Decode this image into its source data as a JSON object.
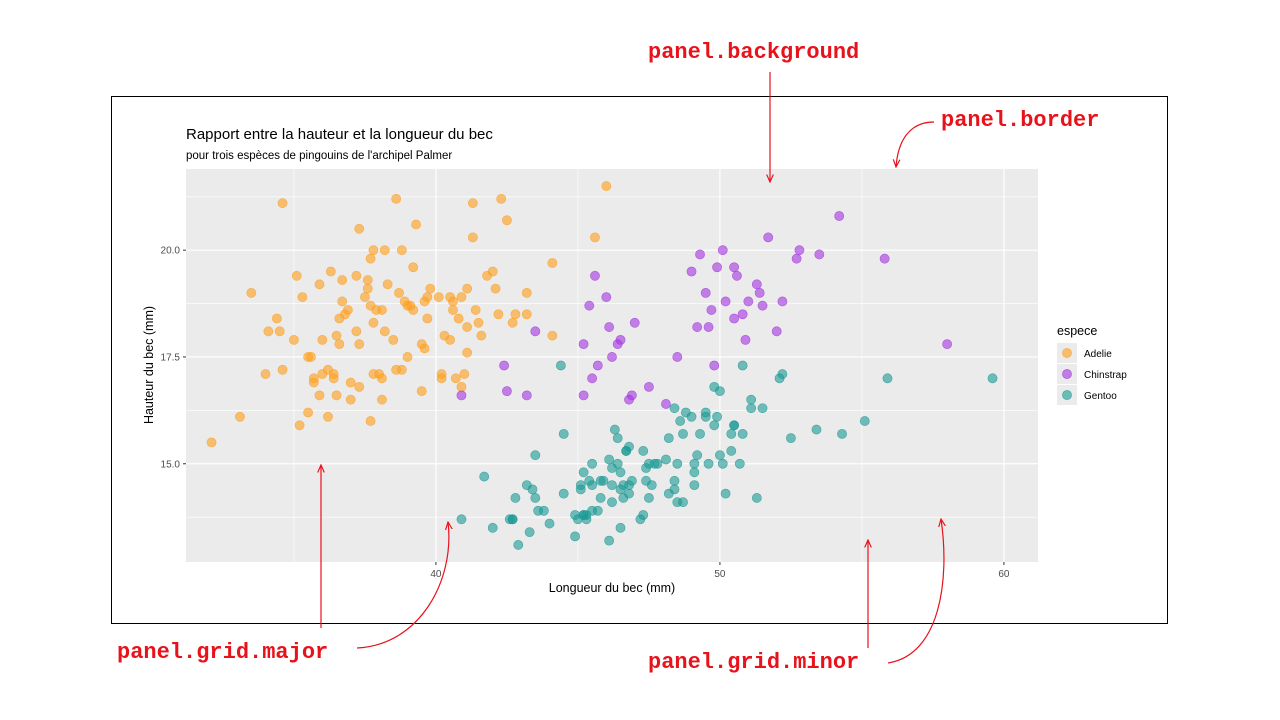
{
  "annotations": {
    "panel_background": "panel.background",
    "panel_border": "panel.border",
    "panel_grid_major": "panel.grid.major",
    "panel_grid_minor": "panel.grid.minor"
  },
  "colors": {
    "annotation": "#e8121b",
    "panel": "#ebebeb",
    "grid": "#ffffff",
    "Adelie": "#ff9f1c",
    "Chinstrap": "#a335e0",
    "Gentoo": "#1b9a95"
  },
  "chart_data": {
    "type": "scatter",
    "title": "Rapport entre la hauteur et la longueur du bec",
    "subtitle": "pour trois espèces de pingouins de l'archipel Palmer",
    "xlabel": "Longueur du bec (mm)",
    "ylabel": "Hauteur du bec (mm)",
    "xlim": [
      31.2,
      61.2
    ],
    "ylim": [
      12.7,
      21.9
    ],
    "xticks": [
      40,
      50,
      60
    ],
    "xtick_labels": [
      "40",
      "50",
      "60"
    ],
    "yticks": [
      15.0,
      17.5,
      20.0
    ],
    "ytick_labels": [
      "15.0",
      "17.5",
      "20.0"
    ],
    "grid": true,
    "legend_title": "espece",
    "legend_position": "right",
    "series": [
      {
        "name": "Adelie",
        "points": [
          [
            32.1,
            15.5
          ],
          [
            33.1,
            16.1
          ],
          [
            33.5,
            19.0
          ],
          [
            34.0,
            17.1
          ],
          [
            34.1,
            18.1
          ],
          [
            34.4,
            18.4
          ],
          [
            34.5,
            18.1
          ],
          [
            34.6,
            21.1
          ],
          [
            34.6,
            17.2
          ],
          [
            35.0,
            17.9
          ],
          [
            35.1,
            19.4
          ],
          [
            35.2,
            15.9
          ],
          [
            35.3,
            18.9
          ],
          [
            35.5,
            17.5
          ],
          [
            35.5,
            16.2
          ],
          [
            35.6,
            17.5
          ],
          [
            35.7,
            16.9
          ],
          [
            35.7,
            17.0
          ],
          [
            35.9,
            16.6
          ],
          [
            35.9,
            19.2
          ],
          [
            36.0,
            17.9
          ],
          [
            36.0,
            17.1
          ],
          [
            36.2,
            17.2
          ],
          [
            36.2,
            16.1
          ],
          [
            36.3,
            19.5
          ],
          [
            36.4,
            17.1
          ],
          [
            36.4,
            17.0
          ],
          [
            36.5,
            16.6
          ],
          [
            36.5,
            18.0
          ],
          [
            36.6,
            17.8
          ],
          [
            36.6,
            18.4
          ],
          [
            36.7,
            18.8
          ],
          [
            36.7,
            19.3
          ],
          [
            36.8,
            18.5
          ],
          [
            36.9,
            18.6
          ],
          [
            37.0,
            16.9
          ],
          [
            37.0,
            16.5
          ],
          [
            37.2,
            18.1
          ],
          [
            37.2,
            19.4
          ],
          [
            37.3,
            20.5
          ],
          [
            37.3,
            17.8
          ],
          [
            37.3,
            16.8
          ],
          [
            37.5,
            18.9
          ],
          [
            37.6,
            19.1
          ],
          [
            37.6,
            19.3
          ],
          [
            37.7,
            18.7
          ],
          [
            37.7,
            16.0
          ],
          [
            37.7,
            19.8
          ],
          [
            37.8,
            17.1
          ],
          [
            37.8,
            18.3
          ],
          [
            37.8,
            20.0
          ],
          [
            37.9,
            18.6
          ],
          [
            38.0,
            17.1
          ],
          [
            38.1,
            18.6
          ],
          [
            38.1,
            17.0
          ],
          [
            38.1,
            16.5
          ],
          [
            38.2,
            18.1
          ],
          [
            38.2,
            20.0
          ],
          [
            38.3,
            19.2
          ],
          [
            38.5,
            17.9
          ],
          [
            38.6,
            17.2
          ],
          [
            38.6,
            21.2
          ],
          [
            38.7,
            19.0
          ],
          [
            38.8,
            17.2
          ],
          [
            38.8,
            20.0
          ],
          [
            38.9,
            18.8
          ],
          [
            39.0,
            17.5
          ],
          [
            39.0,
            18.7
          ],
          [
            39.1,
            18.7
          ],
          [
            39.2,
            19.6
          ],
          [
            39.2,
            18.6
          ],
          [
            39.3,
            20.6
          ],
          [
            39.5,
            16.7
          ],
          [
            39.5,
            17.8
          ],
          [
            39.6,
            17.7
          ],
          [
            39.6,
            18.8
          ],
          [
            39.7,
            18.4
          ],
          [
            39.7,
            18.9
          ],
          [
            39.8,
            19.1
          ],
          [
            40.1,
            18.9
          ],
          [
            40.2,
            17.1
          ],
          [
            40.2,
            17.0
          ],
          [
            40.3,
            18.0
          ],
          [
            40.5,
            18.9
          ],
          [
            40.5,
            17.9
          ],
          [
            40.6,
            18.8
          ],
          [
            40.6,
            18.6
          ],
          [
            40.7,
            17.0
          ],
          [
            40.8,
            18.4
          ],
          [
            40.9,
            16.8
          ],
          [
            40.9,
            18.9
          ],
          [
            41.0,
            17.1
          ],
          [
            41.1,
            17.6
          ],
          [
            41.1,
            18.2
          ],
          [
            41.1,
            19.1
          ],
          [
            41.3,
            21.1
          ],
          [
            41.3,
            20.3
          ],
          [
            41.4,
            18.6
          ],
          [
            41.5,
            18.3
          ],
          [
            41.6,
            18.0
          ],
          [
            41.8,
            19.4
          ],
          [
            42.0,
            19.5
          ],
          [
            42.1,
            19.1
          ],
          [
            42.2,
            18.5
          ],
          [
            42.3,
            21.2
          ],
          [
            42.5,
            20.7
          ],
          [
            42.7,
            18.3
          ],
          [
            42.8,
            18.5
          ],
          [
            43.2,
            18.5
          ],
          [
            43.2,
            19.0
          ],
          [
            44.1,
            19.7
          ],
          [
            44.1,
            18.0
          ],
          [
            45.6,
            20.3
          ],
          [
            46.0,
            21.5
          ]
        ]
      },
      {
        "name": "Chinstrap",
        "points": [
          [
            40.9,
            16.6
          ],
          [
            42.4,
            17.3
          ],
          [
            42.5,
            16.7
          ],
          [
            43.2,
            16.6
          ],
          [
            43.5,
            18.1
          ],
          [
            45.2,
            16.6
          ],
          [
            45.2,
            17.8
          ],
          [
            45.4,
            18.7
          ],
          [
            45.5,
            17.0
          ],
          [
            45.6,
            19.4
          ],
          [
            45.7,
            17.3
          ],
          [
            46.0,
            18.9
          ],
          [
            46.1,
            18.2
          ],
          [
            46.2,
            17.5
          ],
          [
            46.4,
            17.8
          ],
          [
            46.5,
            17.9
          ],
          [
            46.8,
            16.5
          ],
          [
            46.9,
            16.6
          ],
          [
            47.0,
            18.3
          ],
          [
            47.5,
            16.8
          ],
          [
            48.1,
            16.4
          ],
          [
            48.5,
            17.5
          ],
          [
            49.0,
            19.5
          ],
          [
            49.2,
            18.2
          ],
          [
            49.3,
            19.9
          ],
          [
            49.5,
            19.0
          ],
          [
            49.6,
            18.2
          ],
          [
            49.8,
            17.3
          ],
          [
            49.9,
            19.6
          ],
          [
            50.2,
            18.8
          ],
          [
            50.5,
            19.6
          ],
          [
            50.6,
            19.4
          ],
          [
            50.8,
            18.5
          ],
          [
            50.9,
            17.9
          ],
          [
            51.0,
            18.8
          ],
          [
            51.3,
            19.2
          ],
          [
            51.4,
            19.0
          ],
          [
            51.5,
            18.7
          ],
          [
            51.7,
            20.3
          ],
          [
            52.0,
            18.1
          ],
          [
            52.2,
            18.8
          ],
          [
            52.7,
            19.8
          ],
          [
            52.8,
            20.0
          ],
          [
            53.5,
            19.9
          ],
          [
            54.2,
            20.8
          ],
          [
            55.8,
            19.8
          ],
          [
            58.0,
            17.8
          ],
          [
            50.1,
            20.0
          ],
          [
            50.5,
            18.4
          ],
          [
            49.7,
            18.6
          ]
        ]
      },
      {
        "name": "Gentoo",
        "points": [
          [
            40.9,
            13.7
          ],
          [
            41.7,
            14.7
          ],
          [
            42.0,
            13.5
          ],
          [
            42.6,
            13.7
          ],
          [
            42.7,
            13.7
          ],
          [
            42.8,
            14.2
          ],
          [
            42.9,
            13.1
          ],
          [
            43.2,
            14.5
          ],
          [
            43.3,
            13.4
          ],
          [
            43.4,
            14.4
          ],
          [
            43.5,
            14.2
          ],
          [
            43.6,
            13.9
          ],
          [
            43.8,
            13.9
          ],
          [
            44.0,
            13.6
          ],
          [
            44.4,
            17.3
          ],
          [
            44.5,
            15.7
          ],
          [
            44.5,
            14.3
          ],
          [
            45.0,
            13.7
          ],
          [
            45.1,
            14.4
          ],
          [
            45.2,
            14.8
          ],
          [
            45.3,
            13.8
          ],
          [
            45.3,
            13.7
          ],
          [
            45.4,
            14.6
          ],
          [
            45.5,
            15.0
          ],
          [
            45.5,
            13.9
          ],
          [
            45.7,
            13.9
          ],
          [
            45.8,
            14.2
          ],
          [
            45.9,
            14.6
          ],
          [
            46.1,
            15.1
          ],
          [
            46.2,
            14.5
          ],
          [
            46.2,
            14.9
          ],
          [
            46.3,
            15.8
          ],
          [
            46.4,
            15.0
          ],
          [
            46.5,
            13.5
          ],
          [
            46.5,
            14.4
          ],
          [
            46.6,
            14.2
          ],
          [
            46.7,
            15.3
          ],
          [
            46.8,
            14.3
          ],
          [
            46.8,
            15.4
          ],
          [
            46.9,
            14.6
          ],
          [
            47.2,
            13.7
          ],
          [
            47.3,
            15.3
          ],
          [
            47.4,
            14.6
          ],
          [
            47.5,
            14.2
          ],
          [
            47.6,
            14.5
          ],
          [
            47.7,
            15.0
          ],
          [
            47.8,
            15.0
          ],
          [
            48.1,
            15.1
          ],
          [
            48.2,
            14.3
          ],
          [
            48.4,
            14.4
          ],
          [
            48.5,
            14.1
          ],
          [
            48.6,
            16.0
          ],
          [
            48.7,
            14.1
          ],
          [
            48.7,
            15.7
          ],
          [
            48.8,
            16.2
          ],
          [
            49.0,
            16.1
          ],
          [
            49.1,
            14.5
          ],
          [
            49.1,
            15.0
          ],
          [
            49.3,
            15.7
          ],
          [
            49.5,
            16.2
          ],
          [
            49.5,
            16.1
          ],
          [
            49.6,
            15.0
          ],
          [
            49.8,
            15.9
          ],
          [
            49.9,
            16.1
          ],
          [
            50.0,
            15.2
          ],
          [
            50.1,
            15.0
          ],
          [
            50.2,
            14.3
          ],
          [
            50.4,
            15.3
          ],
          [
            50.5,
            15.9
          ],
          [
            50.7,
            15.0
          ],
          [
            50.8,
            15.7
          ],
          [
            51.1,
            16.3
          ],
          [
            51.3,
            14.2
          ],
          [
            51.5,
            16.3
          ],
          [
            52.1,
            17.0
          ],
          [
            52.2,
            17.1
          ],
          [
            52.5,
            15.6
          ],
          [
            53.4,
            15.8
          ],
          [
            54.3,
            15.7
          ],
          [
            55.1,
            16.0
          ],
          [
            55.9,
            17.0
          ],
          [
            59.6,
            17.0
          ],
          [
            45.5,
            14.5
          ],
          [
            46.2,
            14.1
          ],
          [
            47.3,
            13.8
          ],
          [
            48.2,
            15.6
          ],
          [
            50.0,
            16.7
          ],
          [
            50.5,
            15.9
          ],
          [
            51.1,
            16.5
          ],
          [
            49.8,
            16.8
          ],
          [
            45.2,
            13.8
          ],
          [
            44.9,
            13.8
          ],
          [
            46.1,
            13.2
          ],
          [
            48.5,
            15.0
          ],
          [
            50.8,
            17.3
          ],
          [
            47.5,
            15.0
          ],
          [
            45.1,
            14.5
          ],
          [
            43.5,
            15.2
          ],
          [
            46.4,
            15.6
          ],
          [
            48.4,
            16.3
          ],
          [
            49.2,
            15.2
          ],
          [
            50.4,
            15.7
          ],
          [
            44.9,
            13.3
          ],
          [
            46.5,
            14.8
          ],
          [
            47.4,
            14.9
          ],
          [
            45.8,
            14.6
          ],
          [
            42.7,
            13.7
          ],
          [
            45.2,
            13.8
          ],
          [
            46.6,
            14.5
          ],
          [
            49.1,
            14.8
          ],
          [
            48.4,
            14.6
          ],
          [
            46.8,
            14.5
          ],
          [
            46.7,
            15.3
          ]
        ]
      }
    ]
  }
}
